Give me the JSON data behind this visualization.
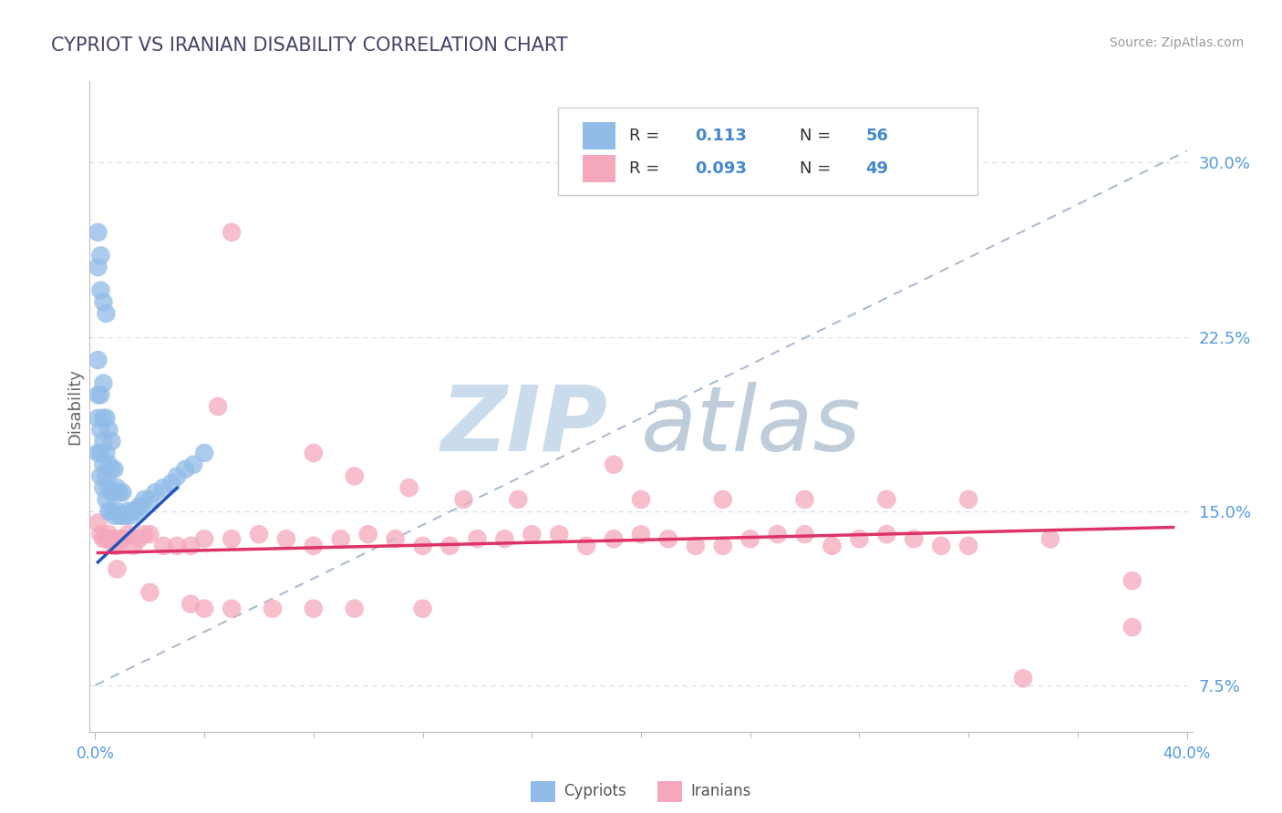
{
  "title": "CYPRIOT VS IRANIAN DISABILITY CORRELATION CHART",
  "source": "Source: ZipAtlas.com",
  "ylabel": "Disability",
  "ytick_labels": [
    "7.5%",
    "15.0%",
    "22.5%",
    "30.0%"
  ],
  "ytick_values": [
    0.075,
    0.15,
    0.225,
    0.3
  ],
  "xlim": [
    -0.002,
    0.402
  ],
  "ylim": [
    0.055,
    0.335
  ],
  "cypriot_color": "#92bce8",
  "iranian_color": "#f5a8bc",
  "trend_cypriot_color": "#2255bb",
  "trend_iranian_color": "#dd3366",
  "trend_dashed_color": "#aabbd0",
  "watermark_zip_color": "#c8d8e8",
  "watermark_atlas_color": "#c0c8d8",
  "background_color": "#ffffff",
  "grid_color": "#d8dde8",
  "spine_color": "#bbbbbb",
  "title_color": "#444466",
  "source_color": "#999999",
  "tick_color": "#666666",
  "right_tick_color": "#5599dd",
  "legend_r_color": "#333333",
  "legend_val_color": "#4488cc",
  "cypriot_x": [
    0.001,
    0.001,
    0.001,
    0.001,
    0.002,
    0.002,
    0.002,
    0.002,
    0.003,
    0.003,
    0.003,
    0.003,
    0.003,
    0.004,
    0.004,
    0.004,
    0.004,
    0.005,
    0.005,
    0.005,
    0.005,
    0.006,
    0.006,
    0.006,
    0.006,
    0.007,
    0.007,
    0.007,
    0.008,
    0.008,
    0.009,
    0.009,
    0.01,
    0.01,
    0.011,
    0.012,
    0.013,
    0.014,
    0.015,
    0.016,
    0.017,
    0.018,
    0.02,
    0.022,
    0.025,
    0.028,
    0.03,
    0.033,
    0.036,
    0.04,
    0.001,
    0.001,
    0.002,
    0.002,
    0.003,
    0.004
  ],
  "cypriot_y": [
    0.175,
    0.19,
    0.2,
    0.215,
    0.165,
    0.175,
    0.185,
    0.2,
    0.16,
    0.17,
    0.18,
    0.19,
    0.205,
    0.155,
    0.165,
    0.175,
    0.19,
    0.15,
    0.16,
    0.17,
    0.185,
    0.15,
    0.158,
    0.168,
    0.18,
    0.148,
    0.158,
    0.168,
    0.15,
    0.16,
    0.148,
    0.158,
    0.148,
    0.158,
    0.148,
    0.15,
    0.148,
    0.15,
    0.15,
    0.152,
    0.152,
    0.155,
    0.155,
    0.158,
    0.16,
    0.162,
    0.165,
    0.168,
    0.17,
    0.175,
    0.27,
    0.255,
    0.26,
    0.245,
    0.24,
    0.235
  ],
  "iranian_x": [
    0.001,
    0.002,
    0.003,
    0.004,
    0.005,
    0.006,
    0.007,
    0.008,
    0.009,
    0.01,
    0.012,
    0.014,
    0.016,
    0.018,
    0.02,
    0.025,
    0.03,
    0.035,
    0.04,
    0.05,
    0.06,
    0.07,
    0.08,
    0.09,
    0.1,
    0.11,
    0.12,
    0.13,
    0.14,
    0.15,
    0.16,
    0.17,
    0.18,
    0.19,
    0.2,
    0.21,
    0.22,
    0.23,
    0.24,
    0.25,
    0.26,
    0.27,
    0.28,
    0.29,
    0.3,
    0.31,
    0.32,
    0.35,
    0.38
  ],
  "iranian_y": [
    0.145,
    0.14,
    0.138,
    0.138,
    0.14,
    0.138,
    0.135,
    0.135,
    0.138,
    0.138,
    0.14,
    0.135,
    0.138,
    0.14,
    0.14,
    0.135,
    0.135,
    0.135,
    0.138,
    0.138,
    0.14,
    0.138,
    0.135,
    0.138,
    0.14,
    0.138,
    0.135,
    0.135,
    0.138,
    0.138,
    0.14,
    0.14,
    0.135,
    0.138,
    0.14,
    0.138,
    0.135,
    0.135,
    0.138,
    0.14,
    0.14,
    0.135,
    0.138,
    0.14,
    0.138,
    0.135,
    0.135,
    0.138,
    0.1
  ],
  "iranian_outliers_x": [
    0.045,
    0.08,
    0.095,
    0.115,
    0.135,
    0.155,
    0.2,
    0.23,
    0.26,
    0.29,
    0.32,
    0.38,
    0.008,
    0.02,
    0.035,
    0.05,
    0.065,
    0.08,
    0.095,
    0.12,
    0.05,
    0.19,
    0.34,
    0.04
  ],
  "iranian_outliers_y": [
    0.195,
    0.175,
    0.165,
    0.16,
    0.155,
    0.155,
    0.155,
    0.155,
    0.155,
    0.155,
    0.155,
    0.12,
    0.125,
    0.115,
    0.11,
    0.108,
    0.108,
    0.108,
    0.108,
    0.108,
    0.27,
    0.17,
    0.078,
    0.108
  ],
  "cyp_trend_x": [
    0.001,
    0.03
  ],
  "cyp_trend_y": [
    0.128,
    0.16
  ],
  "ira_trend_x": [
    0.001,
    0.395
  ],
  "ira_trend_y": [
    0.132,
    0.143
  ],
  "dash_line_x": [
    0.0,
    0.4
  ],
  "dash_line_y": [
    0.075,
    0.305
  ]
}
